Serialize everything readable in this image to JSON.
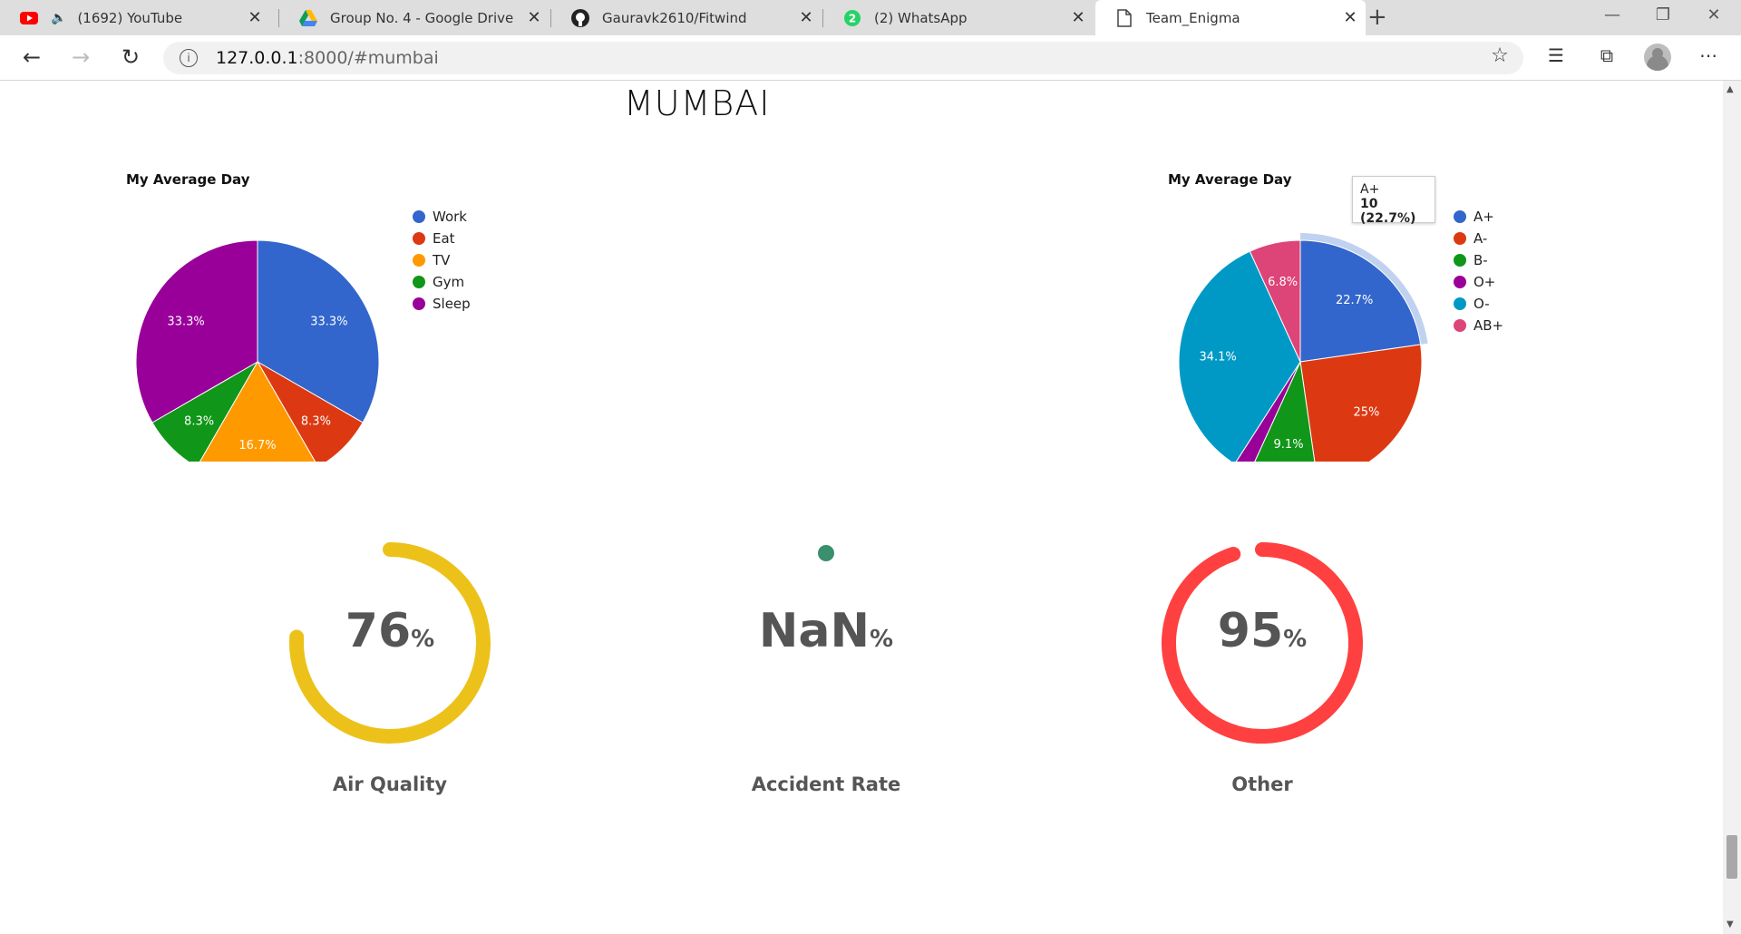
{
  "browser": {
    "tabs": [
      {
        "title": "(1692) YouTube",
        "icon": "youtube-icon"
      },
      {
        "title": "Group No. 4 - Google Drive",
        "icon": "google-drive-icon"
      },
      {
        "title": "Gauravk2610/Fitwind",
        "icon": "github-icon"
      },
      {
        "title": "(2) WhatsApp",
        "icon": "whatsapp-icon",
        "badge": "2"
      },
      {
        "title": "Team_Enigma",
        "icon": "page-icon"
      }
    ],
    "url_host": "127.0.0.1",
    "url_path": ":8000/#mumbai"
  },
  "page": {
    "city_title": "MUMBAI"
  },
  "chart_data": [
    {
      "type": "pie",
      "title": "My Average Day",
      "categories": [
        "Work",
        "Eat",
        "TV",
        "Gym",
        "Sleep"
      ],
      "values": [
        4,
        1,
        2,
        1,
        4
      ],
      "labels": [
        "33.3%",
        "8.3%",
        "16.7%",
        "8.3%",
        "33.3%"
      ],
      "colors": [
        "#3366cc",
        "#dc3912",
        "#ff9900",
        "#109618",
        "#990099"
      ],
      "legend": "right"
    },
    {
      "type": "pie",
      "title": "My Average Day",
      "categories": [
        "A+",
        "A-",
        "B-",
        "O+",
        "O-",
        "AB+"
      ],
      "values": [
        10,
        11,
        4,
        1,
        15,
        3
      ],
      "labels": [
        "22.7%",
        "25%",
        "9.1%",
        "",
        "34.1%",
        "6.8%"
      ],
      "colors": [
        "#3366cc",
        "#dc3912",
        "#109618",
        "#990099",
        "#0099c6",
        "#dd4477"
      ],
      "legend": "right",
      "tooltip": {
        "label": "A+",
        "value": "10 (22.7%)"
      }
    }
  ],
  "gauges": [
    {
      "label": "Air Quality",
      "value": "76",
      "unit": "%",
      "fraction": 0.76,
      "color": "#ecc21a"
    },
    {
      "label": "Accident Rate",
      "value": "NaN",
      "unit": "%",
      "fraction": 0,
      "color": "#3a8f6e"
    },
    {
      "label": "Other",
      "value": "95",
      "unit": "%",
      "fraction": 0.95,
      "color": "#ff4040"
    }
  ]
}
